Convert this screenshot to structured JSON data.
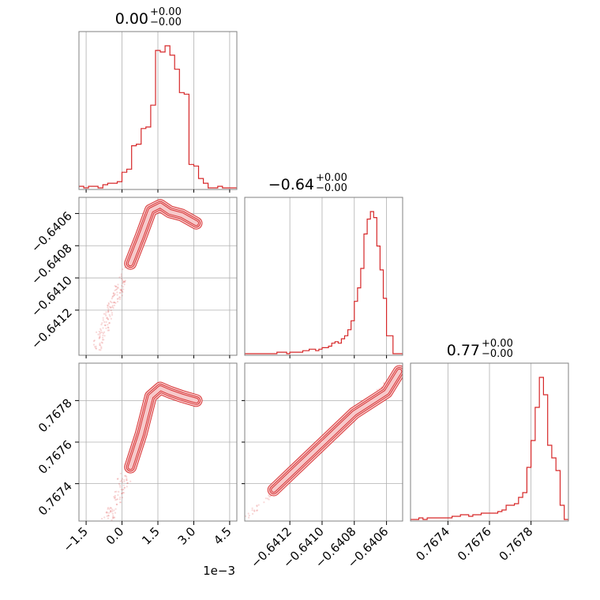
{
  "chart_data": {
    "type": "corner",
    "color": "#d62728",
    "grid": true,
    "titles": [
      {
        "main": "0.00",
        "upper": "+0.00",
        "lower": "−0.00"
      },
      {
        "main": "−0.64",
        "upper": "+0.00",
        "lower": "−0.00"
      },
      {
        "main": "0.77",
        "upper": "+0.00",
        "lower": "−0.00"
      }
    ],
    "axes": [
      {
        "range": [
          -1.8,
          4.8
        ],
        "ticks": [
          -1.5,
          0.0,
          1.5,
          3.0,
          4.5
        ],
        "tick_labels": [
          "−1.5",
          "0.0",
          "1.5",
          "3.0",
          "4.5"
        ],
        "offset_label": "1e−3"
      },
      {
        "range": [
          -0.64148,
          -0.6405
        ],
        "ticks": [
          -0.6412,
          -0.641,
          -0.6408,
          -0.6406
        ],
        "tick_labels": [
          "−0.6412",
          "−0.6410",
          "−0.6408",
          "−0.6406"
        ]
      },
      {
        "range": [
          0.76722,
          0.76798
        ],
        "ticks": [
          0.7674,
          0.7676,
          0.7678
        ],
        "tick_labels": [
          "0.7674",
          "0.7676",
          "0.7678"
        ]
      }
    ],
    "marginals": [
      {
        "x": [
          -1.8,
          -1.6,
          -1.4,
          -1.2,
          -1.0,
          -0.8,
          -0.6,
          -0.4,
          -0.2,
          0.0,
          0.2,
          0.4,
          0.6,
          0.8,
          1.0,
          1.2,
          1.4,
          1.6,
          1.8,
          2.0,
          2.2,
          2.4,
          2.6,
          2.8,
          3.0,
          3.2,
          3.4,
          3.6,
          3.8,
          4.0,
          4.2,
          4.4,
          4.6
        ],
        "y": [
          1,
          0,
          1,
          1,
          0,
          2,
          3,
          3,
          4,
          10,
          12,
          27,
          28,
          38,
          39,
          53,
          88,
          87,
          91,
          85,
          76,
          61,
          60,
          15,
          14,
          6,
          3,
          0,
          0,
          1,
          0,
          0,
          0
        ]
      },
      {
        "x": [
          -0.64148,
          -0.64146,
          -0.64144,
          -0.64142,
          -0.6414,
          -0.64138,
          -0.64136,
          -0.64134,
          -0.64132,
          -0.6413,
          -0.64128,
          -0.64126,
          -0.64124,
          -0.64122,
          -0.6412,
          -0.64118,
          -0.64116,
          -0.64114,
          -0.64112,
          -0.6411,
          -0.64108,
          -0.64106,
          -0.64104,
          -0.64102,
          -0.641,
          -0.64098,
          -0.64096,
          -0.64094,
          -0.64092,
          -0.6409,
          -0.64088,
          -0.64086,
          -0.64084,
          -0.64082,
          -0.6408,
          -0.64078,
          -0.64076,
          -0.64074,
          -0.64072,
          -0.6407,
          -0.64068,
          -0.64066,
          -0.64064,
          -0.64062,
          -0.6406,
          -0.64058,
          -0.64056,
          -0.64054,
          -0.64052
        ],
        "y": [
          0,
          0,
          0,
          0,
          0,
          0,
          0,
          0,
          0,
          0,
          1,
          1,
          1,
          0,
          1,
          1,
          1,
          1,
          2,
          2,
          3,
          3,
          2,
          3,
          4,
          4,
          5,
          7,
          8,
          7,
          10,
          12,
          16,
          22,
          35,
          44,
          57,
          80,
          90,
          95,
          91,
          72,
          56,
          37,
          12,
          12,
          0,
          0,
          0
        ]
      },
      {
        "x": [
          0.76722,
          0.76724,
          0.76726,
          0.76728,
          0.7673,
          0.76732,
          0.76734,
          0.76736,
          0.76738,
          0.7674,
          0.76742,
          0.76744,
          0.76746,
          0.76748,
          0.7675,
          0.76752,
          0.76754,
          0.76756,
          0.76758,
          0.7676,
          0.76762,
          0.76764,
          0.76766,
          0.76768,
          0.7677,
          0.76772,
          0.76774,
          0.76776,
          0.76778,
          0.7678,
          0.76782,
          0.76784,
          0.76786,
          0.76788,
          0.7679,
          0.76792,
          0.76794,
          0.76796
        ],
        "y": [
          0,
          0,
          1,
          0,
          1,
          1,
          1,
          1,
          1,
          1,
          2,
          2,
          3,
          3,
          2,
          3,
          3,
          4,
          4,
          4,
          4,
          5,
          6,
          9,
          9,
          10,
          14,
          17,
          33,
          50,
          71,
          90,
          79,
          47,
          39,
          31,
          9,
          0
        ]
      }
    ],
    "joint_peaks": [
      {
        "row": 1,
        "col": 0,
        "points": [
          [
            0.35,
            -0.64091
          ],
          [
            0.8,
            -0.64074
          ],
          [
            1.2,
            -0.64058
          ],
          [
            1.6,
            -0.64055
          ],
          [
            2.0,
            -0.64059
          ],
          [
            2.5,
            -0.64061
          ],
          [
            3.1,
            -0.64066
          ]
        ]
      },
      {
        "row": 2,
        "col": 0,
        "points": [
          [
            0.35,
            0.76748
          ],
          [
            0.8,
            0.76764
          ],
          [
            1.2,
            0.76782
          ],
          [
            1.6,
            0.76786
          ],
          [
            2.0,
            0.76784
          ],
          [
            2.5,
            0.76782
          ],
          [
            3.1,
            0.7678
          ]
        ]
      },
      {
        "row": 2,
        "col": 1,
        "points": [
          [
            -0.6413,
            0.76737
          ],
          [
            -0.6408,
            0.76774
          ],
          [
            -0.6406,
            0.76784
          ],
          [
            -0.64052,
            0.76794
          ]
        ]
      }
    ]
  }
}
